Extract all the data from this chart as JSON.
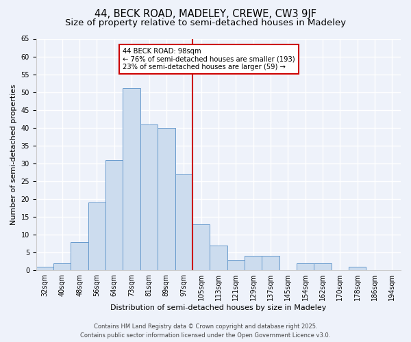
{
  "title": "44, BECK ROAD, MADELEY, CREWE, CW3 9JF",
  "subtitle": "Size of property relative to semi-detached houses in Madeley",
  "xlabel": "Distribution of semi-detached houses by size in Madeley",
  "ylabel": "Number of semi-detached properties",
  "bin_labels": [
    "32sqm",
    "40sqm",
    "48sqm",
    "56sqm",
    "64sqm",
    "73sqm",
    "81sqm",
    "89sqm",
    "97sqm",
    "105sqm",
    "113sqm",
    "121sqm",
    "129sqm",
    "137sqm",
    "145sqm",
    "154sqm",
    "162sqm",
    "170sqm",
    "178sqm",
    "186sqm",
    "194sqm"
  ],
  "bar_values": [
    1,
    2,
    8,
    19,
    31,
    51,
    41,
    40,
    27,
    13,
    7,
    3,
    4,
    4,
    0,
    2,
    2,
    0,
    1,
    0,
    0
  ],
  "bar_color": "#ccdcee",
  "bar_edge_color": "#6699cc",
  "vline_color": "#cc0000",
  "vline_index": 8,
  "annotation_title": "44 BECK ROAD: 98sqm",
  "annotation_line1": "← 76% of semi-detached houses are smaller (193)",
  "annotation_line2": "23% of semi-detached houses are larger (59) →",
  "annotation_box_color": "#ffffff",
  "annotation_box_edge": "#cc0000",
  "ylim": [
    0,
    65
  ],
  "yticks": [
    0,
    5,
    10,
    15,
    20,
    25,
    30,
    35,
    40,
    45,
    50,
    55,
    60,
    65
  ],
  "footer_line1": "Contains HM Land Registry data © Crown copyright and database right 2025.",
  "footer_line2": "Contains public sector information licensed under the Open Government Licence v3.0.",
  "bg_color": "#eef2fa",
  "title_fontsize": 10.5,
  "subtitle_fontsize": 9.5,
  "axis_label_fontsize": 8,
  "tick_fontsize": 7,
  "footer_fontsize": 6
}
